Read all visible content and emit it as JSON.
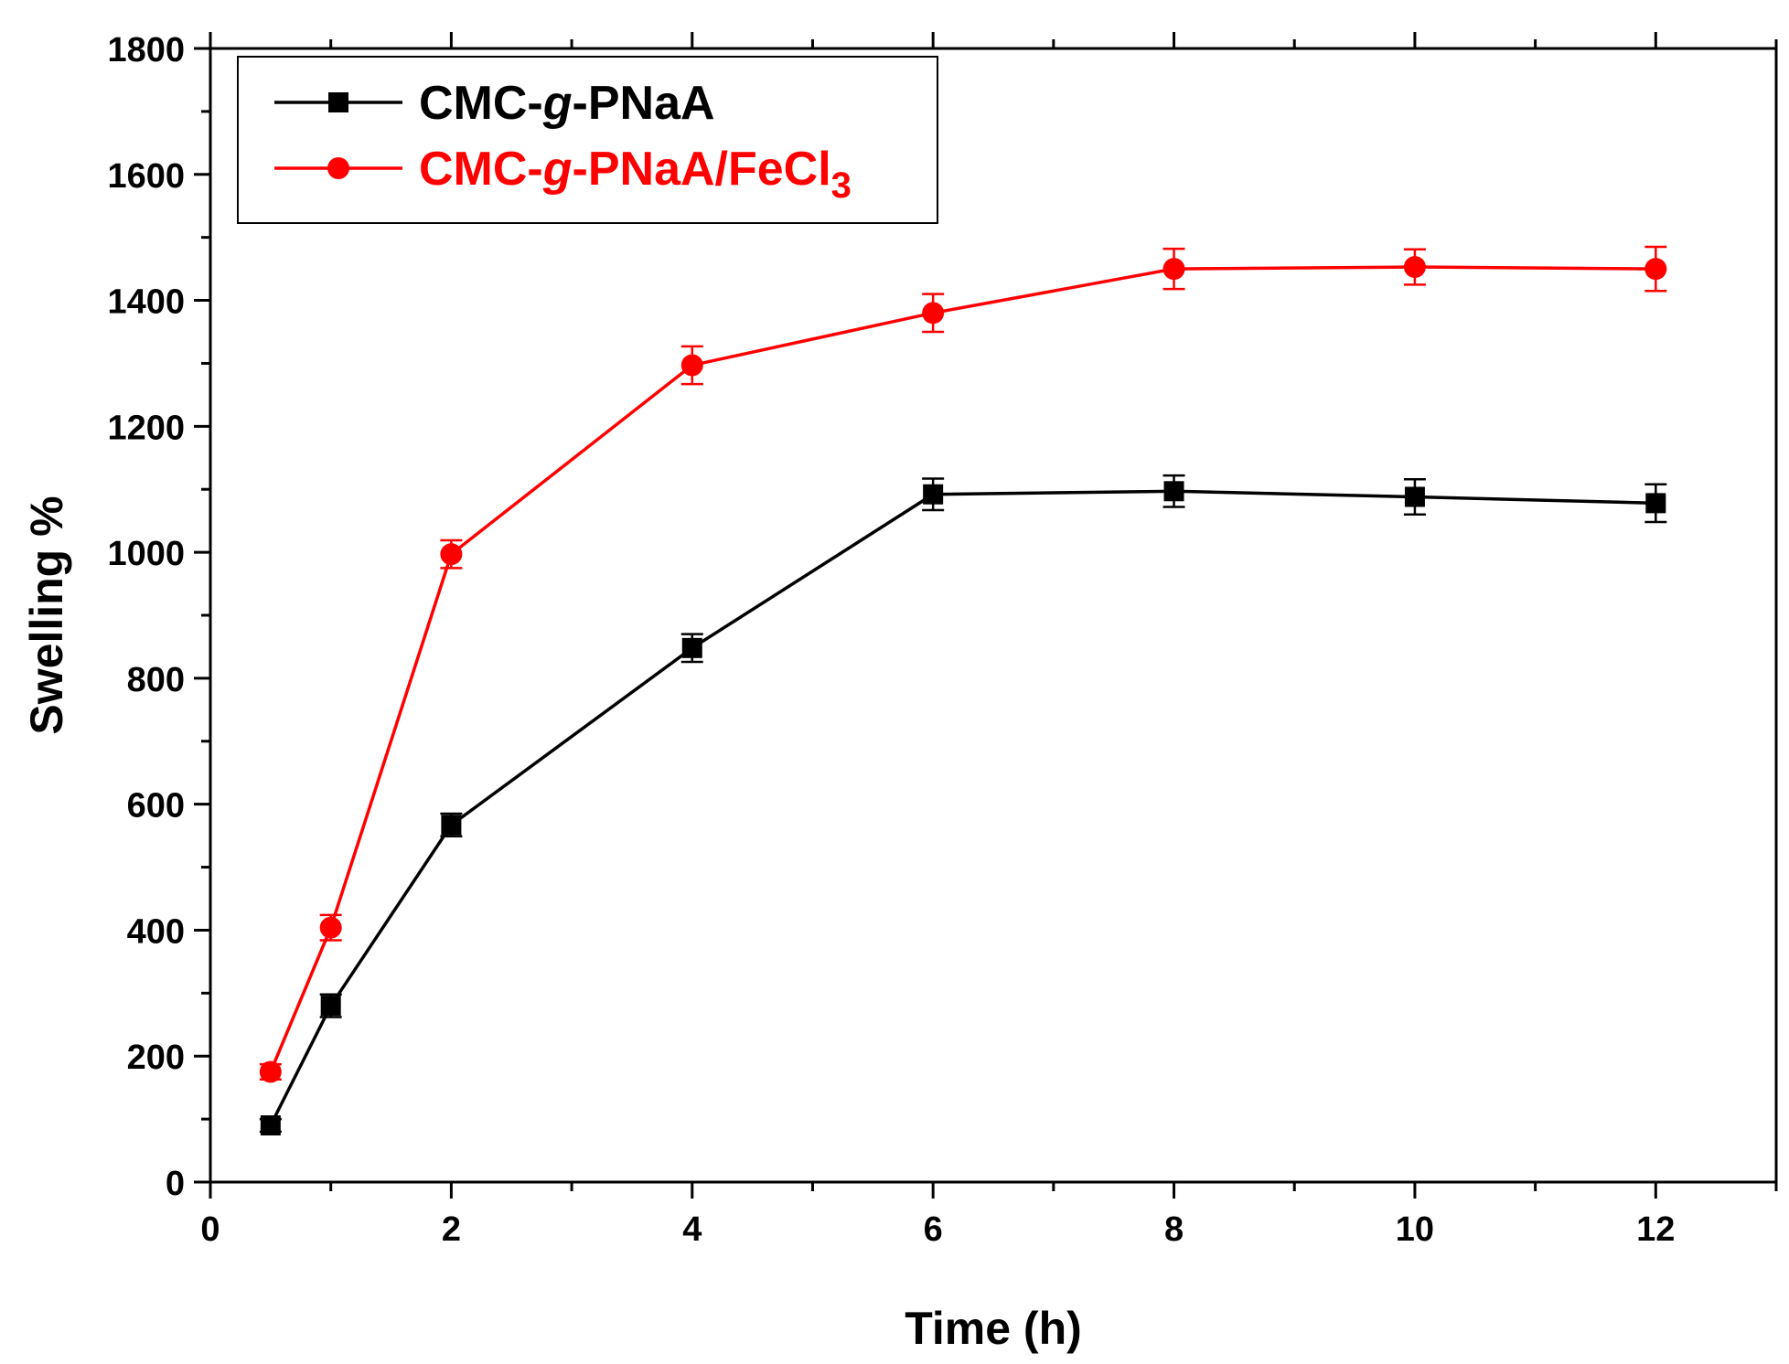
{
  "chart_data": {
    "type": "line",
    "title": "",
    "xlabel": "Time (h)",
    "ylabel": "Swelling %",
    "xlim": [
      0,
      13
    ],
    "ylim": [
      0,
      1800
    ],
    "xticks": [
      0,
      2,
      4,
      6,
      8,
      10,
      12
    ],
    "yticks": [
      0,
      200,
      400,
      600,
      800,
      1000,
      1200,
      1400,
      1600,
      1800
    ],
    "legend_position": "top-left",
    "series": [
      {
        "name": "CMC-g-PNaA",
        "legend_parts": [
          "CMC-",
          "g",
          "-PNaA"
        ],
        "color": "#000000",
        "marker": "square",
        "x": [
          0.5,
          1,
          2,
          4,
          6,
          8,
          10,
          12
        ],
        "y": [
          90,
          280,
          567,
          848,
          1092,
          1097,
          1088,
          1078
        ],
        "err": [
          10,
          18,
          18,
          22,
          25,
          25,
          28,
          30
        ]
      },
      {
        "name": "CMC-g-PNaA/FeCl3",
        "legend_parts": [
          "CMC-",
          "g",
          "-PNaA/FeCl",
          "3"
        ],
        "color": "#ff0000",
        "marker": "circle",
        "x": [
          0.5,
          1,
          2,
          4,
          6,
          8,
          10,
          12
        ],
        "y": [
          175,
          404,
          997,
          1297,
          1380,
          1450,
          1453,
          1450
        ],
        "err": [
          12,
          20,
          22,
          30,
          30,
          32,
          28,
          35
        ]
      }
    ]
  }
}
